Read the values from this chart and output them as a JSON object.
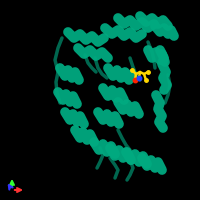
{
  "background_color": "#000000",
  "protein_color": "#00AA80",
  "protein_color_dark": "#007A5E",
  "protein_color_light": "#00CC99",
  "ligand_yellow": "#FFD700",
  "ligand_red": "#FF2200",
  "ligand_blue": "#2244FF",
  "axis_x_color": "#FF3333",
  "axis_y_color": "#33FF33",
  "axis_z_color": "#3333FF",
  "figsize": [
    2.0,
    2.0
  ],
  "dpi": 100
}
